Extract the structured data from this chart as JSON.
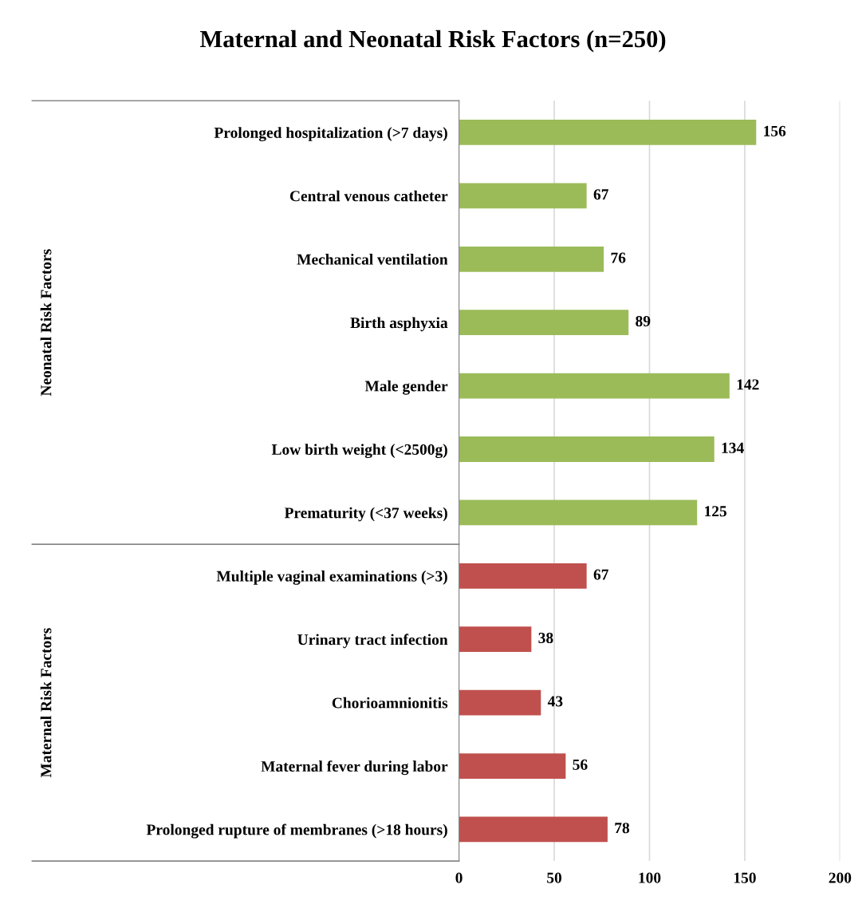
{
  "chart_data": {
    "type": "bar",
    "orientation": "horizontal",
    "title": "Maternal and Neonatal Risk Factors (n=250)",
    "categories": [
      "Prolonged hospitalization (>7 days)",
      "Central venous catheter",
      "Mechanical ventilation",
      "Birth asphyxia",
      "Male gender",
      "Low birth weight (<2500g)",
      "Prematurity (<37 weeks)",
      "Multiple vaginal examinations (>3)",
      "Urinary tract infection",
      "Chorioamnionitis",
      "Maternal fever during labor",
      "Prolonged rupture of membranes (>18 hours)"
    ],
    "values": [
      156,
      67,
      76,
      89,
      142,
      134,
      125,
      67,
      38,
      43,
      56,
      78
    ],
    "colors": [
      "#9bbb59",
      "#9bbb59",
      "#9bbb59",
      "#9bbb59",
      "#9bbb59",
      "#9bbb59",
      "#9bbb59",
      "#c0504d",
      "#c0504d",
      "#c0504d",
      "#c0504d",
      "#c0504d"
    ],
    "annotations": [
      "Neonatal Risk Factors",
      "Maternal Risk Factors"
    ],
    "xlim": [
      0,
      200
    ],
    "xticks": [
      0,
      50,
      100,
      150,
      200
    ],
    "grid": "x",
    "data_labels": true,
    "legend": false
  }
}
